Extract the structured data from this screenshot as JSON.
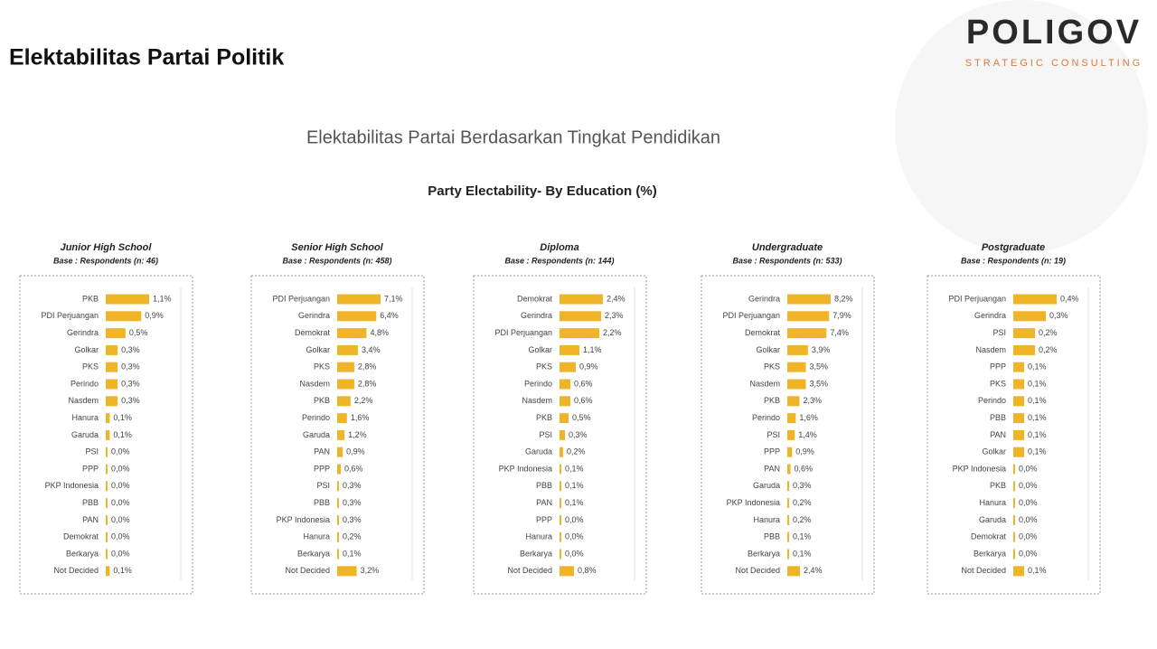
{
  "header": {
    "title": "Elektabilitas Partai Politik",
    "logo": "POLIGOV",
    "logo_tagline": "STRATEGIC CONSULTING"
  },
  "subtitle": "Elektabilitas Partai Berdasarkan Tingkat Pendidikan",
  "chart_title": "Party Electability- By Education (%)",
  "chart_data": [
    {
      "type": "bar",
      "orientation": "horizontal",
      "color": "#f0b429",
      "title": "Junior High School",
      "subtitle": "Base : Respondents (n: 46)",
      "categories": [
        "PKB",
        "PDI Perjuangan",
        "Gerindra",
        "Golkar",
        "PKS",
        "Perindo",
        "Nasdem",
        "Hanura",
        "Garuda",
        "PSI",
        "PPP",
        "PKP Indonesia",
        "PBB",
        "PAN",
        "Demokrat",
        "Berkarya",
        "Not Decided"
      ],
      "values": [
        1.1,
        0.9,
        0.5,
        0.3,
        0.3,
        0.3,
        0.3,
        0.1,
        0.1,
        0.0,
        0.0,
        0.0,
        0.0,
        0.0,
        0.0,
        0.0,
        0.1
      ],
      "value_labels": [
        "1,1%",
        "0,9%",
        "0,5%",
        "0,3%",
        "0,3%",
        "0,3%",
        "0,3%",
        "0,1%",
        "0,1%",
        "0,0%",
        "0,0%",
        "0,0%",
        "0,0%",
        "0,0%",
        "0,0%",
        "0,0%",
        "0,1%"
      ]
    },
    {
      "type": "bar",
      "orientation": "horizontal",
      "color": "#f0b429",
      "title": "Senior High School",
      "subtitle": "Base : Respondents (n: 458)",
      "categories": [
        "PDI Perjuangan",
        "Gerindra",
        "Demokrat",
        "Golkar",
        "PKS",
        "Nasdem",
        "PKB",
        "Perindo",
        "Garuda",
        "PAN",
        "PPP",
        "PSI",
        "PBB",
        "PKP Indonesia",
        "Hanura",
        "Berkarya",
        "Not Decided"
      ],
      "values": [
        7.1,
        6.4,
        4.8,
        3.4,
        2.8,
        2.8,
        2.2,
        1.6,
        1.2,
        0.9,
        0.6,
        0.3,
        0.3,
        0.3,
        0.2,
        0.1,
        3.2
      ],
      "value_labels": [
        "7,1%",
        "6,4%",
        "4,8%",
        "3,4%",
        "2,8%",
        "2,8%",
        "2,2%",
        "1,6%",
        "1,2%",
        "0,9%",
        "0,6%",
        "0,3%",
        "0,3%",
        "0,3%",
        "0,2%",
        "0,1%",
        "3,2%"
      ]
    },
    {
      "type": "bar",
      "orientation": "horizontal",
      "color": "#f0b429",
      "title": "Diploma",
      "subtitle": "Base : Respondents (n: 144)",
      "categories": [
        "Demokrat",
        "Gerindra",
        "PDI Perjuangan",
        "Golkar",
        "PKS",
        "Perindo",
        "Nasdem",
        "PKB",
        "PSI",
        "Garuda",
        "PKP Indonesia",
        "PBB",
        "PAN",
        "PPP",
        "Hanura",
        "Berkarya",
        "Not Decided"
      ],
      "values": [
        2.4,
        2.3,
        2.2,
        1.1,
        0.9,
        0.6,
        0.6,
        0.5,
        0.3,
        0.2,
        0.1,
        0.1,
        0.1,
        0.0,
        0.0,
        0.0,
        0.8
      ],
      "value_labels": [
        "2,4%",
        "2,3%",
        "2,2%",
        "1,1%",
        "0,9%",
        "0,6%",
        "0,6%",
        "0,5%",
        "0,3%",
        "0,2%",
        "0,1%",
        "0,1%",
        "0,1%",
        "0,0%",
        "0,0%",
        "0,0%",
        "0,8%"
      ]
    },
    {
      "type": "bar",
      "orientation": "horizontal",
      "color": "#f0b429",
      "title": "Undergraduate",
      "subtitle": "Base : Respondents (n: 533)",
      "categories": [
        "Gerindra",
        "PDI Perjuangan",
        "Demokrat",
        "Golkar",
        "PKS",
        "Nasdem",
        "PKB",
        "Perindo",
        "PSI",
        "PPP",
        "PAN",
        "Garuda",
        "PKP Indonesia",
        "Hanura",
        "PBB",
        "Berkarya",
        "Not Decided"
      ],
      "values": [
        8.2,
        7.9,
        7.4,
        3.9,
        3.5,
        3.5,
        2.3,
        1.6,
        1.4,
        0.9,
        0.6,
        0.3,
        0.2,
        0.2,
        0.1,
        0.1,
        2.4
      ],
      "value_labels": [
        "8,2%",
        "7,9%",
        "7,4%",
        "3,9%",
        "3,5%",
        "3,5%",
        "2,3%",
        "1,6%",
        "1,4%",
        "0,9%",
        "0,6%",
        "0,3%",
        "0,2%",
        "0,2%",
        "0,1%",
        "0,1%",
        "2,4%"
      ]
    },
    {
      "type": "bar",
      "orientation": "horizontal",
      "color": "#f0b429",
      "title": "Postgraduate",
      "subtitle": "Base : Respondents (n: 19)",
      "categories": [
        "PDI Perjuangan",
        "Gerindra",
        "PSI",
        "Nasdem",
        "PPP",
        "PKS",
        "Perindo",
        "PBB",
        "PAN",
        "Golkar",
        "PKP Indonesia",
        "PKB",
        "Hanura",
        "Garuda",
        "Demokrat",
        "Berkarya",
        "Not Decided"
      ],
      "values": [
        0.4,
        0.3,
        0.2,
        0.2,
        0.1,
        0.1,
        0.1,
        0.1,
        0.1,
        0.1,
        0.0,
        0.0,
        0.0,
        0.0,
        0.0,
        0.0,
        0.1
      ],
      "value_labels": [
        "0,4%",
        "0,3%",
        "0,2%",
        "0,2%",
        "0,1%",
        "0,1%",
        "0,1%",
        "0,1%",
        "0,1%",
        "0,1%",
        "0,0%",
        "0,0%",
        "0,0%",
        "0,0%",
        "0,0%",
        "0,0%",
        "0,1%"
      ]
    }
  ]
}
